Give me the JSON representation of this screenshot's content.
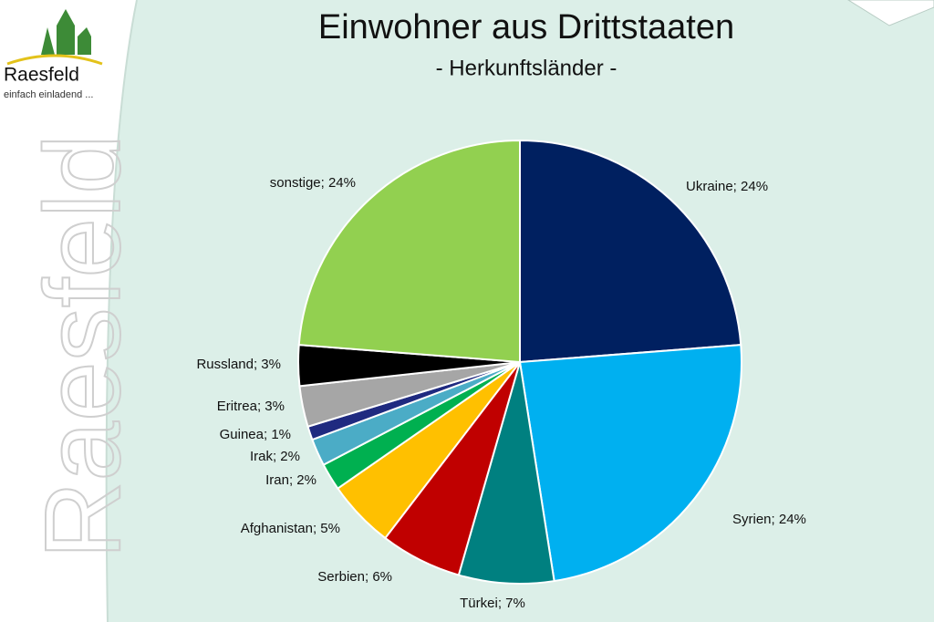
{
  "logo": {
    "name": "Raesfeld",
    "slogan": "einfach einladend ...",
    "watermark": "Raesfeld"
  },
  "chart_data": {
    "type": "pie",
    "title": "Einwohner aus Drittstaaten",
    "subtitle": "- Herkunftsländer -",
    "categories": [
      "Ukraine; 24%",
      "Syrien; 24%",
      "Türkei; 7%",
      "Serbien; 6%",
      "Afghanistan; 5%",
      "Iran; 2%",
      "Irak; 2%",
      "Guinea; 1%",
      "Eritrea; 3%",
      "Russland; 3%",
      "sonstige; 24%"
    ],
    "values": [
      24,
      24,
      7,
      6,
      5,
      2,
      2,
      1,
      3,
      3,
      24
    ],
    "colors": [
      "#002060",
      "#00b0f0",
      "#008080",
      "#c00000",
      "#ffc000",
      "#00b050",
      "#4bacc6",
      "#1f2a80",
      "#a6a6a6",
      "#000000",
      "#92d050"
    ]
  }
}
